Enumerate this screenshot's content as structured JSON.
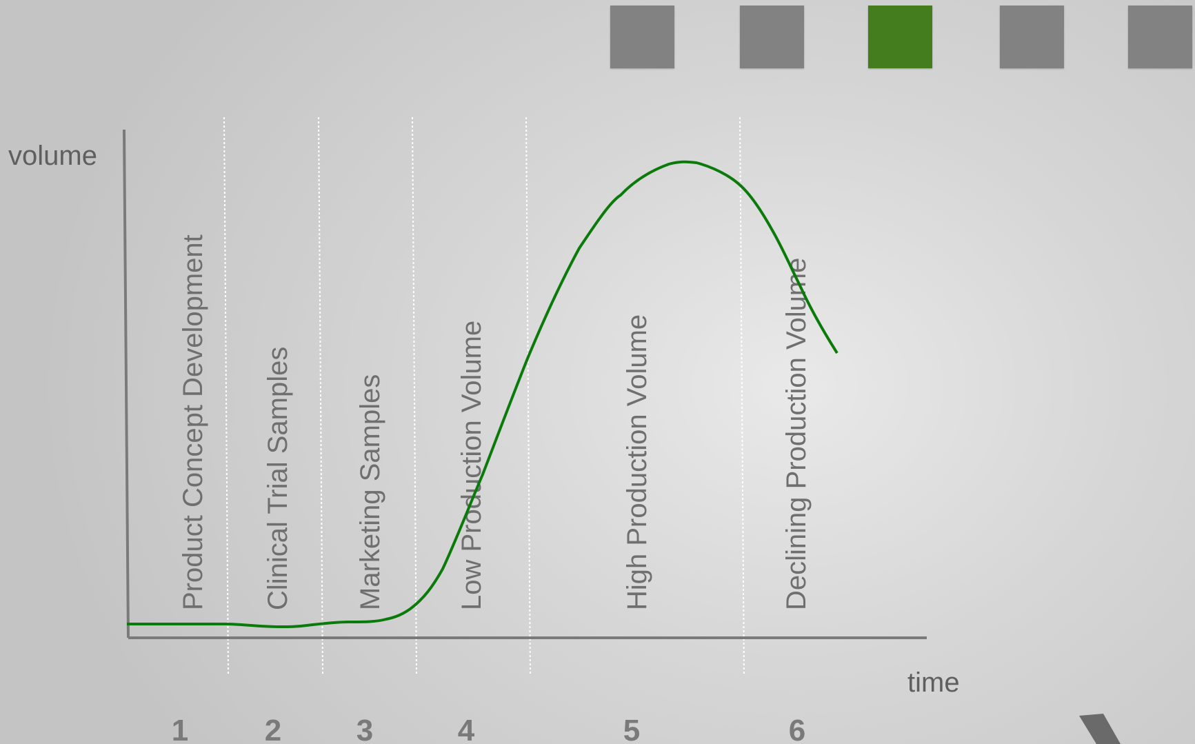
{
  "colors": {
    "curve": "#0a7a0a",
    "axis": "#7a7a7a",
    "divider": "#ffffff",
    "square_gray": "#828282",
    "square_active": "#437d1d"
  },
  "nav_squares": [
    {
      "state": "inactive"
    },
    {
      "state": "inactive"
    },
    {
      "state": "active"
    },
    {
      "state": "inactive"
    },
    {
      "state": "inactive"
    }
  ],
  "axes": {
    "y_label": "volume",
    "x_label": "time"
  },
  "phases": [
    {
      "number": "1",
      "label": "Product Concept Development"
    },
    {
      "number": "2",
      "label": "Clinical Trial Samples"
    },
    {
      "number": "3",
      "label": "Marketing Samples"
    },
    {
      "number": "4",
      "label": "Low Production Volume"
    },
    {
      "number": "5",
      "label": "High Production Volume"
    },
    {
      "number": "6",
      "label": "Declining Production Volume"
    }
  ]
}
